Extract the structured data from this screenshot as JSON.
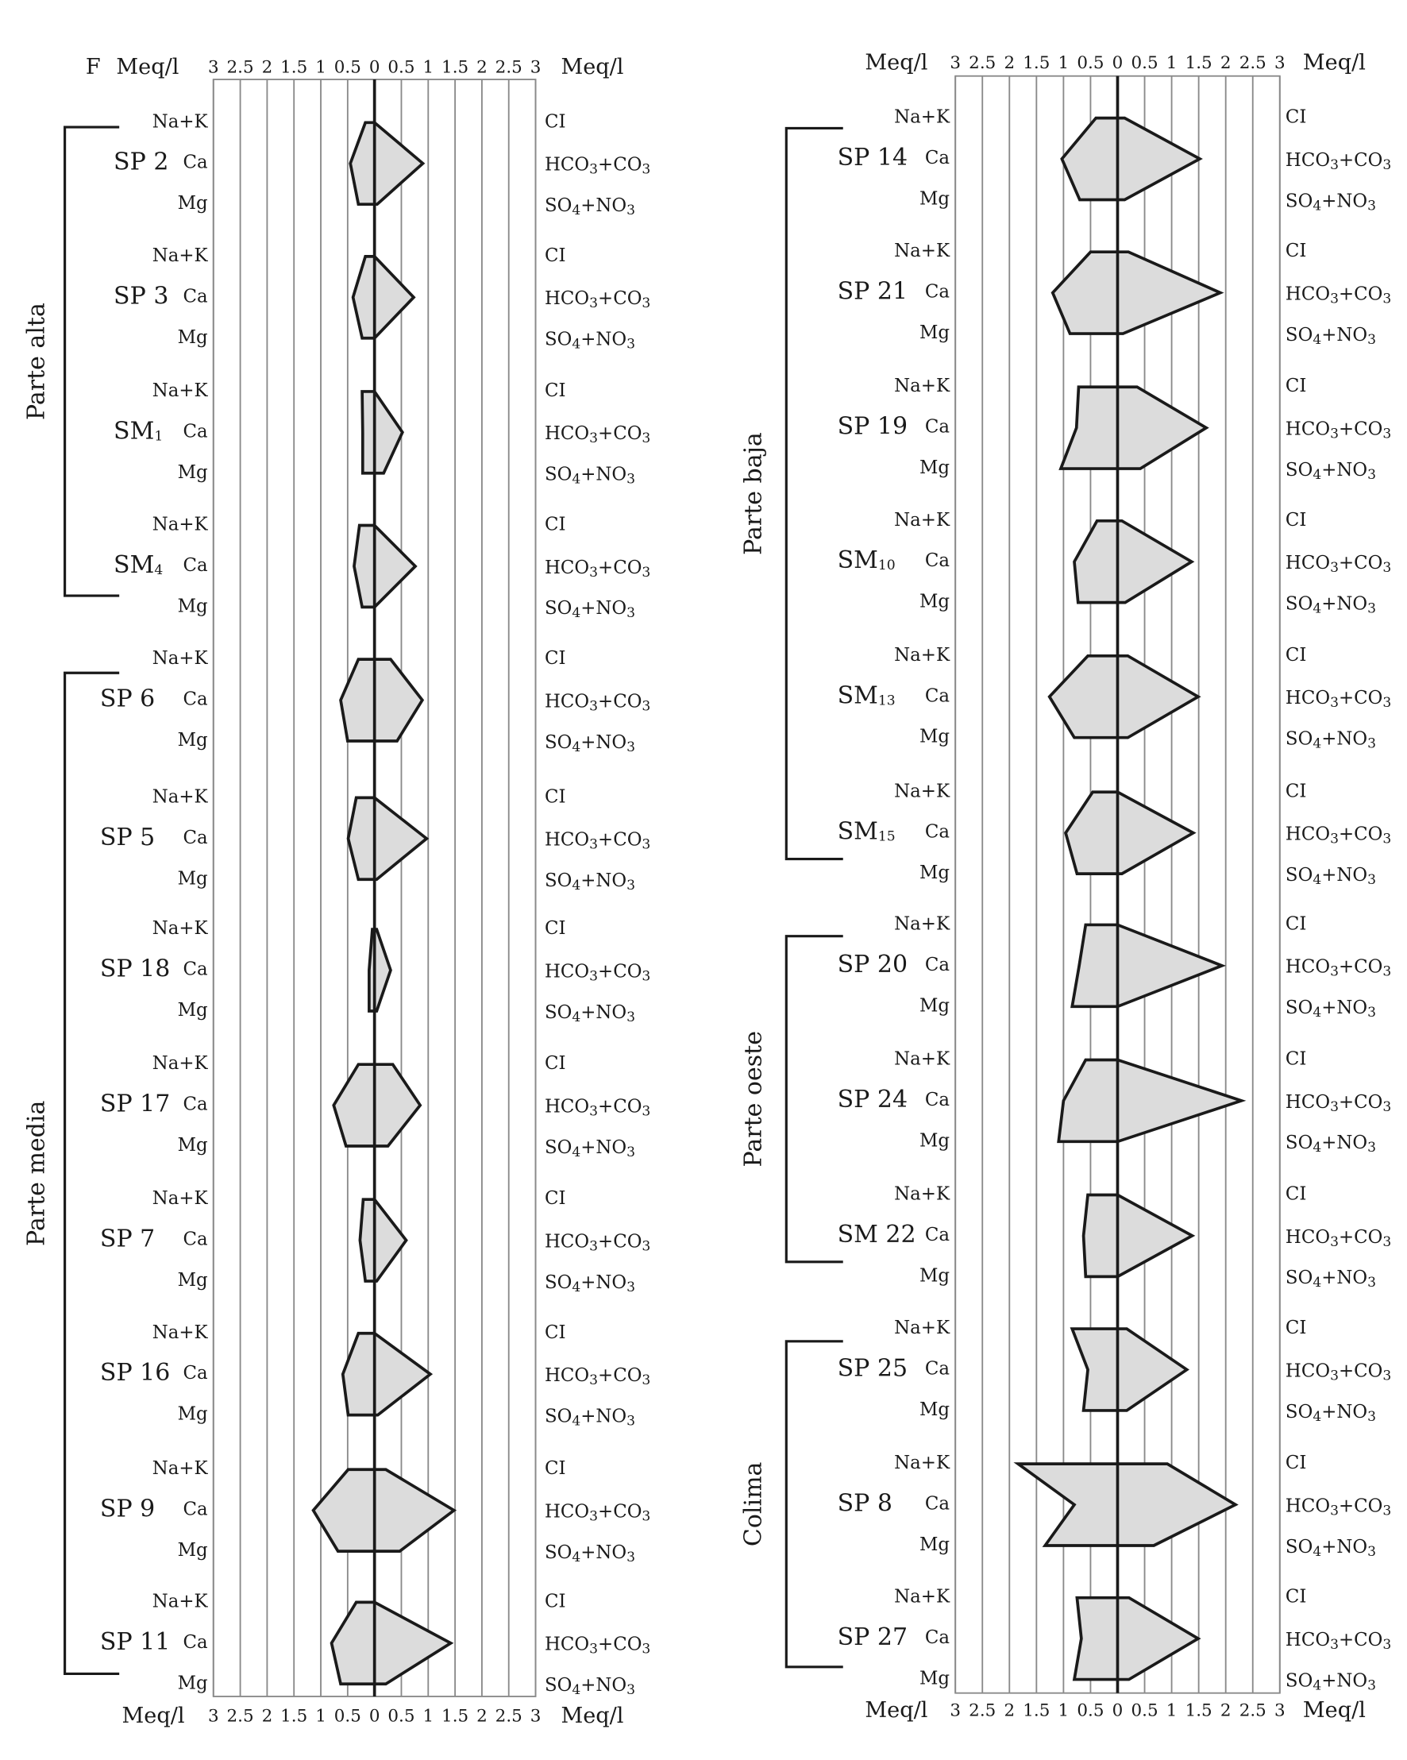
{
  "chart_data": {
    "type": "stiff",
    "units_label": "Meq/l",
    "figure_letter": "F",
    "tick_labels": [
      "3",
      "2.5",
      "2",
      "1.5",
      "1",
      "0.5",
      "0",
      "0.5",
      "1",
      "1.5",
      "2",
      "2.5",
      "3"
    ],
    "xlim": [
      -3,
      3
    ],
    "cation_labels": [
      "Na+K",
      "Ca",
      "Mg"
    ],
    "anion_labels": [
      "CI",
      "HCO3+CO3",
      "SO4+NO3"
    ],
    "panels": [
      {
        "show_letter": true,
        "groups": [
          {
            "name": "Parte alta",
            "from": 0,
            "to": 3
          },
          {
            "name": "Parte media",
            "from": 4,
            "to": 11
          }
        ],
        "samples": [
          {
            "name": "SP 2",
            "cations": [
              0.17,
              0.45,
              0.3
            ],
            "anions": [
              0.0,
              0.9,
              0.05
            ]
          },
          {
            "name": "SP 3",
            "cations": [
              0.17,
              0.4,
              0.23
            ],
            "anions": [
              0.0,
              0.73,
              0.0
            ]
          },
          {
            "name": "SM1",
            "cations": [
              0.23,
              0.22,
              0.22
            ],
            "anions": [
              0.0,
              0.52,
              0.17
            ]
          },
          {
            "name": "SM4",
            "cations": [
              0.28,
              0.38,
              0.23
            ],
            "anions": [
              0.0,
              0.76,
              0.0
            ]
          },
          {
            "name": "SP 6",
            "cations": [
              0.3,
              0.63,
              0.5
            ],
            "anions": [
              0.3,
              0.89,
              0.42
            ]
          },
          {
            "name": "SP 5",
            "cations": [
              0.34,
              0.49,
              0.3
            ],
            "anions": [
              0.0,
              0.97,
              0.04
            ]
          },
          {
            "name": "SP 18",
            "cations": [
              0.04,
              0.1,
              0.1
            ],
            "anions": [
              0.04,
              0.3,
              0.04
            ]
          },
          {
            "name": "SP 17",
            "cations": [
              0.3,
              0.76,
              0.53
            ],
            "anions": [
              0.34,
              0.85,
              0.25
            ]
          },
          {
            "name": "SP 7",
            "cations": [
              0.21,
              0.27,
              0.17
            ],
            "anions": [
              0.0,
              0.59,
              0.04
            ]
          },
          {
            "name": "SP 16",
            "cations": [
              0.3,
              0.59,
              0.49
            ],
            "anions": [
              0.0,
              1.04,
              0.06
            ]
          },
          {
            "name": "SP 9",
            "cations": [
              0.49,
              1.14,
              0.68
            ],
            "anions": [
              0.21,
              1.48,
              0.47
            ]
          },
          {
            "name": "SP 11",
            "cations": [
              0.34,
              0.8,
              0.63
            ],
            "anions": [
              0.0,
              1.42,
              0.21
            ]
          }
        ]
      },
      {
        "show_letter": false,
        "groups": [
          {
            "name": "Parte baja",
            "from": 0,
            "to": 5
          },
          {
            "name": "Parte oeste",
            "from": 6,
            "to": 8
          },
          {
            "name": "Colima",
            "from": 9,
            "to": 11
          }
        ],
        "samples": [
          {
            "name": "SP 14",
            "cations": [
              0.4,
              1.03,
              0.7
            ],
            "anions": [
              0.13,
              1.52,
              0.13
            ]
          },
          {
            "name": "SP 21",
            "cations": [
              0.5,
              1.2,
              0.88
            ],
            "anions": [
              0.2,
              1.9,
              0.1
            ]
          },
          {
            "name": "SP 19",
            "cations": [
              0.72,
              0.76,
              1.05
            ],
            "anions": [
              0.36,
              1.64,
              0.42
            ]
          },
          {
            "name": "SM10",
            "cations": [
              0.38,
              0.8,
              0.73
            ],
            "anions": [
              0.08,
              1.37,
              0.14
            ]
          },
          {
            "name": "SM13",
            "cations": [
              0.55,
              1.26,
              0.8
            ],
            "anions": [
              0.19,
              1.49,
              0.19
            ]
          },
          {
            "name": "SM15",
            "cations": [
              0.46,
              0.96,
              0.75
            ],
            "anions": [
              0.0,
              1.4,
              0.08
            ]
          },
          {
            "name": "SP 20",
            "cations": [
              0.59,
              0.71,
              0.84
            ],
            "anions": [
              0.0,
              1.93,
              0.0
            ]
          },
          {
            "name": "SP 24",
            "cations": [
              0.59,
              1.0,
              1.09
            ],
            "anions": [
              0.0,
              2.29,
              0.0
            ]
          },
          {
            "name": "SM 22",
            "cations": [
              0.55,
              0.63,
              0.59
            ],
            "anions": [
              0.0,
              1.38,
              0.0
            ]
          },
          {
            "name": "SP 25",
            "cations": [
              0.84,
              0.55,
              0.63
            ],
            "anions": [
              0.17,
              1.28,
              0.17
            ]
          },
          {
            "name": "SP 8",
            "cations": [
              1.84,
              0.8,
              1.34
            ],
            "anions": [
              0.92,
              2.18,
              0.67
            ]
          },
          {
            "name": "SP 27",
            "cations": [
              0.75,
              0.67,
              0.8
            ],
            "anions": [
              0.21,
              1.49,
              0.21
            ]
          }
        ]
      }
    ]
  }
}
